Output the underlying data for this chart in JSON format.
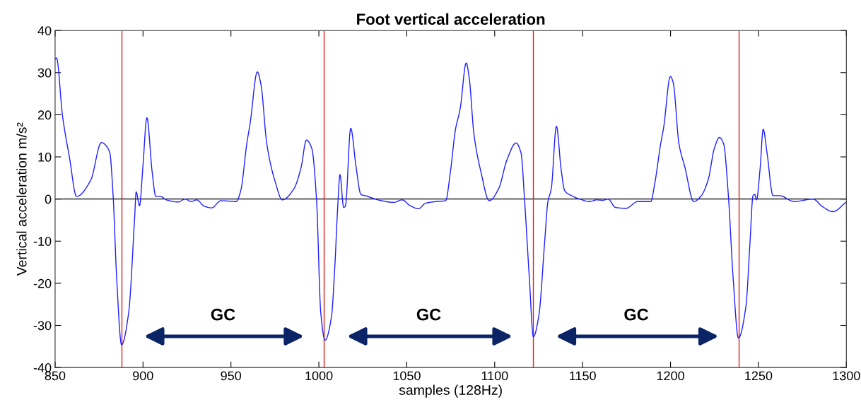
{
  "chart_data": {
    "type": "line",
    "title": "Foot vertical acceleration",
    "xlabel": "samples (128Hz)",
    "ylabel": "Vertical acceleration m/s²",
    "xlim": [
      850,
      1300
    ],
    "xticks": [
      850,
      900,
      950,
      1000,
      1050,
      1100,
      1150,
      1200,
      1250,
      1300
    ],
    "ylim": [
      -40,
      40
    ],
    "yticks": [
      -40,
      -30,
      -20,
      -10,
      0,
      10,
      20,
      30,
      40
    ],
    "grid": false,
    "legend": false,
    "marker": "none",
    "line_style": "solid",
    "series": [
      {
        "color": "#1f1fff",
        "x": [
          850,
          850.8,
          854.2,
          858.2,
          862.2,
          870.3,
          876.3,
          881,
          883,
          885,
          887.8,
          891.8,
          895.2,
          896.1,
          898,
          899.9,
          902.2,
          905.2,
          907.3,
          909.9,
          913.3,
          920,
          924,
          927.4,
          930.5,
          934.8,
          939.1,
          944.2,
          953,
          955.6,
          959,
          961,
          965,
          967.1,
          970.4,
          975.1,
          979.2,
          985.9,
          989.9,
          992.9,
          996,
          998.7,
          1001.1,
          1003.5,
          1007.1,
          1009.1,
          1010.7,
          1012,
          1014.1,
          1015.1,
          1018.1,
          1021.2,
          1023.9,
          1027.2,
          1034.6,
          1042.6,
          1047.3,
          1052,
          1056.7,
          1060.7,
          1066.8,
          1072.1,
          1074.8,
          1077.7,
          1080.4,
          1083.8,
          1085.5,
          1088.2,
          1092.2,
          1096.9,
          1102.3,
          1106.9,
          1112.1,
          1115,
          1117,
          1119.7,
          1122,
          1125.1,
          1128.4,
          1130.2,
          1132.2,
          1135.1,
          1137.8,
          1139.8,
          1143.2,
          1148.3,
          1154,
          1158,
          1161.4,
          1164.4,
          1168.7,
          1174.7,
          1181.4,
          1188.8,
          1190.8,
          1194.4,
          1196.1,
          1199.9,
          1201.5,
          1204.8,
          1208.2,
          1213.2,
          1217.5,
          1221.5,
          1224.9,
          1227.8,
          1230.2,
          1232.9,
          1235.6,
          1238.6,
          1242.9,
          1245.2,
          1246.9,
          1247.9,
          1248.9,
          1250.9,
          1252.7,
          1254.9,
          1258.3,
          1262,
          1270.3,
          1281,
          1286.4,
          1292.4,
          1299.7
        ],
        "values": [
          33.2,
          33.5,
          19.8,
          9.8,
          0.6,
          4.5,
          13.4,
          11.2,
          0.8,
          -18.7,
          -34.6,
          -27.1,
          -4.7,
          1.7,
          -1.6,
          7.5,
          19.3,
          6.4,
          0.6,
          0.6,
          -0.2,
          -0.7,
          0,
          -0.6,
          -0.2,
          -1.7,
          -2.1,
          -0.4,
          -0.6,
          2,
          13.1,
          18.2,
          30.2,
          27.1,
          13.1,
          4.2,
          -0.2,
          2.5,
          7.5,
          14,
          12,
          -0.3,
          -27.1,
          -33.5,
          -28.2,
          -15.9,
          -2,
          5.8,
          -2,
          -1.7,
          16.8,
          7.5,
          1.1,
          0.7,
          -0.3,
          -0.8,
          -0.2,
          -1.6,
          -2.3,
          -1,
          -0.6,
          -0.4,
          6.4,
          16.5,
          21.5,
          32.3,
          28.8,
          15.4,
          6.4,
          -0.4,
          2.5,
          9.2,
          13.3,
          10.9,
          -0.3,
          -18.7,
          -32.7,
          -27.7,
          -10.3,
          -0.8,
          2.5,
          17.3,
          7,
          2,
          0.9,
          0,
          -0.6,
          -0.2,
          -0.3,
          0,
          -2,
          -2.2,
          -0.6,
          -0.6,
          3.1,
          13.1,
          17,
          29.1,
          27.7,
          13.1,
          7.5,
          -0.6,
          0.8,
          4.7,
          12,
          14.6,
          13.1,
          0.8,
          -18.7,
          -33,
          -25.4,
          -10.3,
          0.8,
          1.1,
          -0.2,
          7,
          16.6,
          10.9,
          0.8,
          0.8,
          -0.6,
          0,
          -1.8,
          -3,
          -0.8
        ]
      }
    ],
    "ref_lines": [
      {
        "axis": "y",
        "value": 0,
        "color": "#000000"
      },
      {
        "axis": "x",
        "value": 888,
        "color": "#e0201a"
      },
      {
        "axis": "x",
        "value": 1003,
        "color": "#e0201a"
      },
      {
        "axis": "x",
        "value": 1122,
        "color": "#e0201a"
      },
      {
        "axis": "x",
        "value": 1239,
        "color": "#e0201a"
      }
    ],
    "annotations": [
      "GC",
      "GC",
      "GC"
    ]
  }
}
